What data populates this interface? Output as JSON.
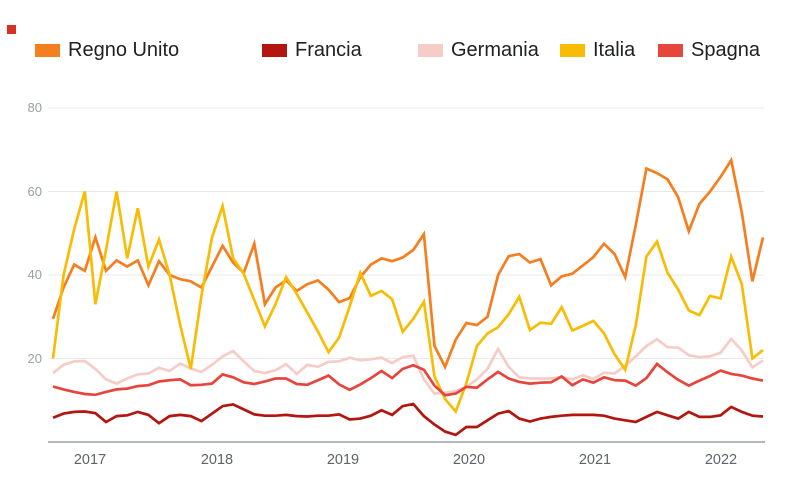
{
  "decoration": {
    "corner_marker_color": "#d93025"
  },
  "chart_data": {
    "type": "line",
    "title": "",
    "legend_position": "top",
    "grid": true,
    "ylim": [
      0,
      80
    ],
    "y_ticks": [
      "80",
      "60",
      "40",
      "20"
    ],
    "x_ticks": [
      "2017",
      "2018",
      "2019",
      "2020",
      "2021",
      "2022"
    ],
    "axis_color": "#9aa0a6",
    "gridline_color": "#e8e8e8",
    "series": [
      {
        "name": "Regno Unito",
        "color": "#f57e1f",
        "values": [
          29.5,
          37,
          42.5,
          41,
          49,
          41,
          43.5,
          42,
          43.5,
          37.5,
          43.3,
          40,
          39,
          38.5,
          37,
          42,
          47,
          43,
          40.5,
          47.5,
          33,
          37,
          38.7,
          36.2,
          37.8,
          38.7,
          36.5,
          33.5,
          34.5,
          39.5,
          42.5,
          44,
          43.3,
          44.2,
          46,
          49.8,
          23,
          18,
          24.5,
          28.5,
          28,
          30,
          40,
          44.5,
          45,
          43,
          43.8,
          37.5,
          39.7,
          40.3,
          42.3,
          44.3,
          47.5,
          45,
          39.5,
          52,
          65.5,
          64.4,
          62.9,
          58.6,
          50.5,
          57,
          60,
          63.5,
          67.5,
          55,
          38.5,
          49
        ]
      },
      {
        "name": "Francia",
        "color": "#b3150f",
        "values": [
          5.8,
          6.8,
          7.2,
          7.3,
          6.9,
          4.8,
          6.2,
          6.4,
          7.2,
          6.5,
          4.5,
          6.2,
          6.5,
          6.2,
          5,
          6.8,
          8.6,
          9,
          7.8,
          6.6,
          6.3,
          6.3,
          6.5,
          6.2,
          6.1,
          6.3,
          6.3,
          6.6,
          5.4,
          5.6,
          6.3,
          7.6,
          6.5,
          8.6,
          9.1,
          6.2,
          4.2,
          2.5,
          1.7,
          3.6,
          3.6,
          5.2,
          6.8,
          7.4,
          5.6,
          4.9,
          5.6,
          6,
          6.3,
          6.5,
          6.5,
          6.5,
          6.3,
          5.6,
          5.2,
          4.8,
          6,
          7.2,
          6.4,
          5.6,
          7.2,
          6,
          6,
          6.4,
          8.4,
          7.2,
          6.3,
          6.1
        ]
      },
      {
        "name": "Germania",
        "color": "#f6ccc7",
        "values": [
          16.5,
          18.5,
          19.3,
          19.4,
          17.5,
          15,
          14,
          15.2,
          16.2,
          16.4,
          17.8,
          17,
          18.8,
          17.6,
          16.8,
          18.5,
          20.5,
          21.8,
          19.3,
          17,
          16.5,
          17.2,
          18.6,
          16.3,
          18.5,
          18,
          19.2,
          19.3,
          20.2,
          19.6,
          19.8,
          20.2,
          18.9,
          20.3,
          20.7,
          15,
          11.6,
          11.8,
          12.2,
          13.2,
          15,
          17.5,
          22.3,
          18,
          15.5,
          15.2,
          15.2,
          15.2,
          15.6,
          15,
          16,
          15.1,
          16.6,
          16.4,
          18.3,
          20.5,
          23,
          24.6,
          22.7,
          22.6,
          20.8,
          20.3,
          20.5,
          21.4,
          24.7,
          21.9,
          17.9,
          19.5
        ]
      },
      {
        "name": "Italia",
        "color": "#f9bc05",
        "values": [
          20,
          40,
          51,
          60,
          33,
          46,
          60,
          44,
          56,
          42,
          48.5,
          40,
          28,
          17.5,
          35,
          49,
          56.5,
          44,
          40.3,
          34,
          27.7,
          33,
          39.5,
          35.5,
          31,
          26.5,
          21.5,
          25,
          32.5,
          40.5,
          35,
          36.2,
          34.2,
          26.4,
          29.5,
          33.6,
          15.7,
          10.3,
          7.3,
          14,
          23,
          26,
          27.5,
          30.6,
          34.8,
          26.8,
          28.6,
          28.3,
          32.3,
          26.7,
          27.8,
          29,
          26,
          21,
          17.3,
          28,
          44.4,
          48,
          40.5,
          36.5,
          31.5,
          30.4,
          35,
          34.4,
          44.4,
          37.8,
          20,
          22
        ]
      },
      {
        "name": "Spagna",
        "color": "#e7453c",
        "values": [
          13.3,
          12.6,
          12,
          11.5,
          11.3,
          12,
          12.6,
          12.8,
          13.4,
          13.6,
          14.5,
          14.8,
          15,
          13.6,
          13.7,
          14,
          16.2,
          15.5,
          14.3,
          13.9,
          14.5,
          15.2,
          15.2,
          13.9,
          13.7,
          14.8,
          15.9,
          13.8,
          12.5,
          13.8,
          15.3,
          17,
          15.3,
          17.5,
          18.4,
          17.3,
          13.5,
          11.2,
          11.6,
          13.2,
          13,
          15,
          16.8,
          15.2,
          14.4,
          14,
          14.2,
          14.3,
          15.7,
          13.6,
          15,
          14.2,
          15.5,
          14.8,
          14.7,
          13.5,
          15.3,
          18.7,
          16.7,
          14.9,
          13.5,
          14.7,
          15.8,
          17.1,
          16.3,
          15.9,
          15.2,
          14.7
        ]
      }
    ]
  }
}
